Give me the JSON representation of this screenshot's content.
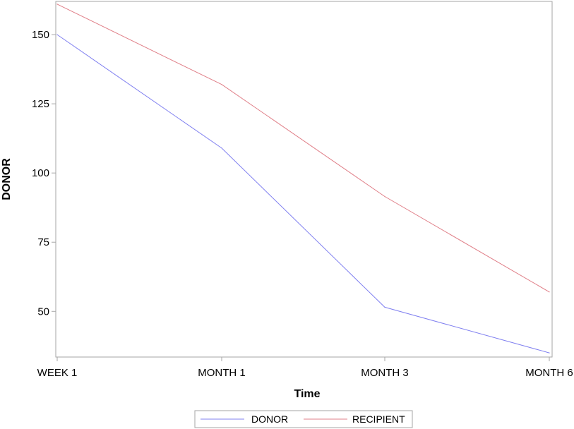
{
  "chart_data": {
    "type": "line",
    "title": "",
    "xlabel": "Time",
    "ylabel": "DONOR",
    "categories": [
      "WEEK 1",
      "MONTH 1",
      "MONTH 3",
      "MONTH 6"
    ],
    "series": [
      {
        "name": "DONOR",
        "values": [
          150,
          109,
          51.5,
          35
        ],
        "color": "#8080f0"
      },
      {
        "name": "RECIPIENT",
        "values": [
          161,
          132,
          91.5,
          57
        ],
        "color": "#e07f88"
      }
    ],
    "ylim": [
      33.5,
      162
    ],
    "yticks": [
      50,
      75,
      100,
      125,
      150
    ],
    "grid": false,
    "legend_position": "bottom-center",
    "frame_color": "#a6a6a6"
  }
}
